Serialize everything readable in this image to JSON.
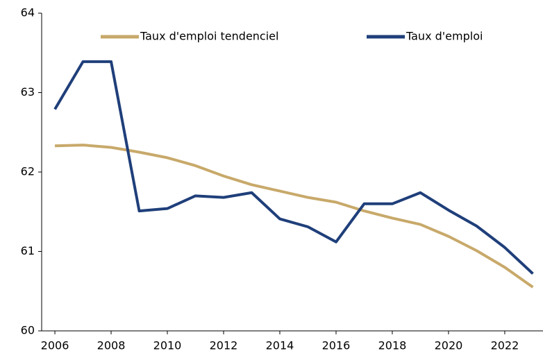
{
  "chart_data": {
    "type": "line",
    "x": [
      2006,
      2007,
      2008,
      2009,
      2010,
      2011,
      2012,
      2013,
      2014,
      2015,
      2016,
      2017,
      2018,
      2019,
      2020,
      2021,
      2022,
      2023
    ],
    "series": [
      {
        "name": "Taux d'emploi tendenciel",
        "color": "#c8a96a",
        "values": [
          62.33,
          62.34,
          62.31,
          62.25,
          62.18,
          62.08,
          61.95,
          61.84,
          61.76,
          61.68,
          61.62,
          61.51,
          61.42,
          61.34,
          61.19,
          61.01,
          60.8,
          60.55
        ]
      },
      {
        "name": "Taux d'emploi",
        "color": "#1f3f7a",
        "values": [
          62.79,
          63.39,
          63.39,
          61.51,
          61.54,
          61.7,
          61.68,
          61.74,
          61.41,
          61.31,
          61.12,
          61.6,
          61.6,
          61.74,
          61.52,
          61.32,
          61.05,
          60.72
        ]
      }
    ],
    "xlim": [
      2005.53,
      2023.36
    ],
    "xticks": [
      2006,
      2008,
      2010,
      2012,
      2014,
      2016,
      2018,
      2020,
      2022
    ],
    "ylim": [
      60,
      64
    ],
    "yticks": [
      60,
      61,
      62,
      63,
      64
    ],
    "legend": "top"
  }
}
